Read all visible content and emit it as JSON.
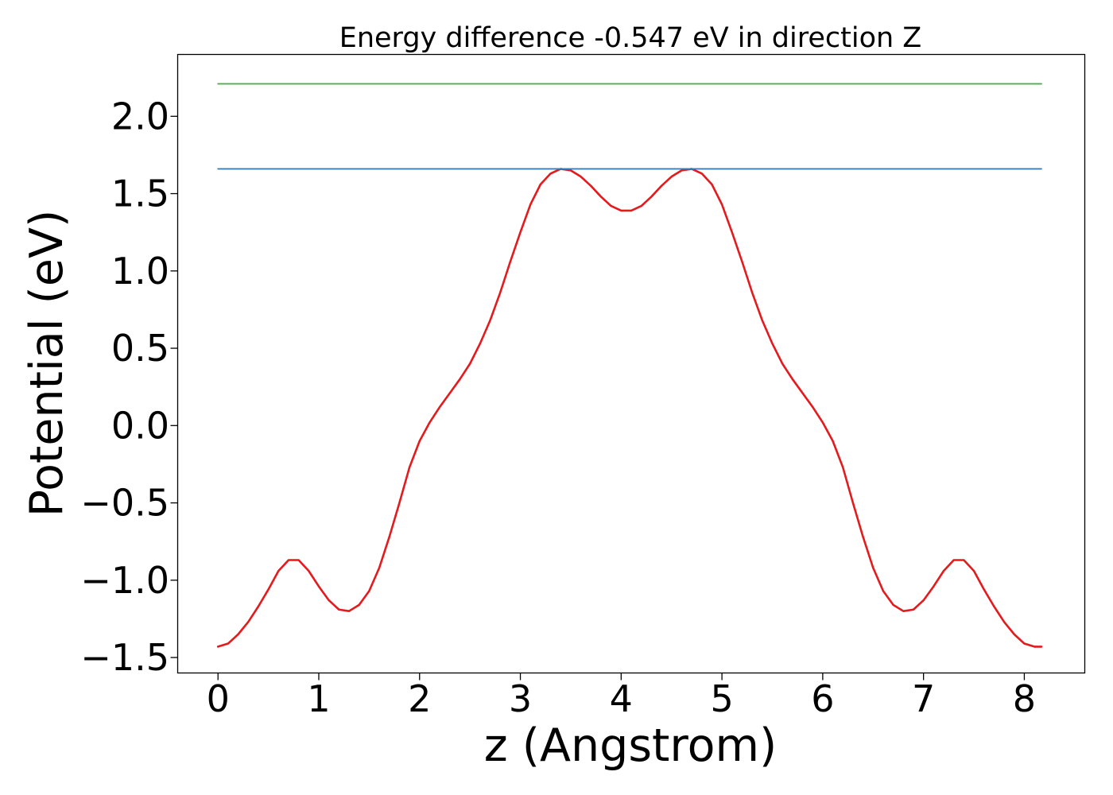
{
  "chart_data": {
    "type": "line",
    "title": "Energy difference -0.547 eV in direction Z",
    "xlabel": "z (Angstrom)",
    "ylabel": "Potential (eV)",
    "xlim": [
      -0.4,
      8.6
    ],
    "ylim": [
      -1.6,
      2.4
    ],
    "xticks": [
      0,
      1,
      2,
      3,
      4,
      5,
      6,
      7,
      8
    ],
    "xtick_labels": [
      "0",
      "1",
      "2",
      "3",
      "4",
      "5",
      "6",
      "7",
      "8"
    ],
    "yticks": [
      -1.5,
      -1.0,
      -0.5,
      0.0,
      0.5,
      1.0,
      1.5,
      2.0
    ],
    "ytick_labels": [
      "−1.5",
      "−1.0",
      "−0.5",
      "0.0",
      "0.5",
      "1.0",
      "1.5",
      "2.0"
    ],
    "grid": false,
    "legend": "none",
    "series": [
      {
        "color": "#e41a1c",
        "x": [
          0.0,
          0.1,
          0.2,
          0.3,
          0.4,
          0.5,
          0.6,
          0.7,
          0.8,
          0.9,
          1.0,
          1.1,
          1.2,
          1.3,
          1.4,
          1.5,
          1.6,
          1.7,
          1.8,
          1.9,
          2.0,
          2.1,
          2.2,
          2.3,
          2.4,
          2.5,
          2.6,
          2.7,
          2.8,
          2.9,
          3.0,
          3.1,
          3.2,
          3.3,
          3.4,
          3.5,
          3.6,
          3.7,
          3.8,
          3.9,
          4.0,
          4.1,
          4.2,
          4.3,
          4.4,
          4.5,
          4.6,
          4.7,
          4.8,
          4.9,
          5.0,
          5.1,
          5.2,
          5.3,
          5.4,
          5.5,
          5.6,
          5.7,
          5.8,
          5.9,
          6.0,
          6.1,
          6.2,
          6.3,
          6.4,
          6.5,
          6.6,
          6.7,
          6.8,
          6.9,
          7.0,
          7.1,
          7.2,
          7.3,
          7.4,
          7.5,
          7.6,
          7.7,
          7.8,
          7.9,
          8.0,
          8.1,
          8.17
        ],
        "y": [
          -1.43,
          -1.41,
          -1.35,
          -1.27,
          -1.17,
          -1.06,
          -0.94,
          -0.87,
          -0.87,
          -0.94,
          -1.04,
          -1.13,
          -1.19,
          -1.2,
          -1.16,
          -1.07,
          -0.92,
          -0.72,
          -0.5,
          -0.27,
          -0.1,
          0.02,
          0.12,
          0.21,
          0.3,
          0.4,
          0.53,
          0.68,
          0.86,
          1.06,
          1.25,
          1.43,
          1.56,
          1.63,
          1.66,
          1.65,
          1.61,
          1.55,
          1.48,
          1.42,
          1.39,
          1.39,
          1.42,
          1.48,
          1.55,
          1.61,
          1.65,
          1.66,
          1.63,
          1.56,
          1.43,
          1.25,
          1.06,
          0.86,
          0.68,
          0.53,
          0.4,
          0.3,
          0.21,
          0.12,
          0.02,
          -0.1,
          -0.27,
          -0.5,
          -0.72,
          -0.92,
          -1.07,
          -1.16,
          -1.2,
          -1.19,
          -1.13,
          -1.04,
          -0.94,
          -0.87,
          -0.87,
          -0.94,
          -1.06,
          -1.17,
          -1.27,
          -1.35,
          -1.41,
          -1.43,
          -1.43
        ]
      },
      {
        "color": "#377eb8",
        "x": [
          0.0,
          8.17
        ],
        "y": [
          1.66,
          1.66
        ]
      },
      {
        "color": "#4daf4a",
        "x": [
          0.0,
          8.17
        ],
        "y": [
          2.21,
          2.21
        ]
      }
    ]
  }
}
